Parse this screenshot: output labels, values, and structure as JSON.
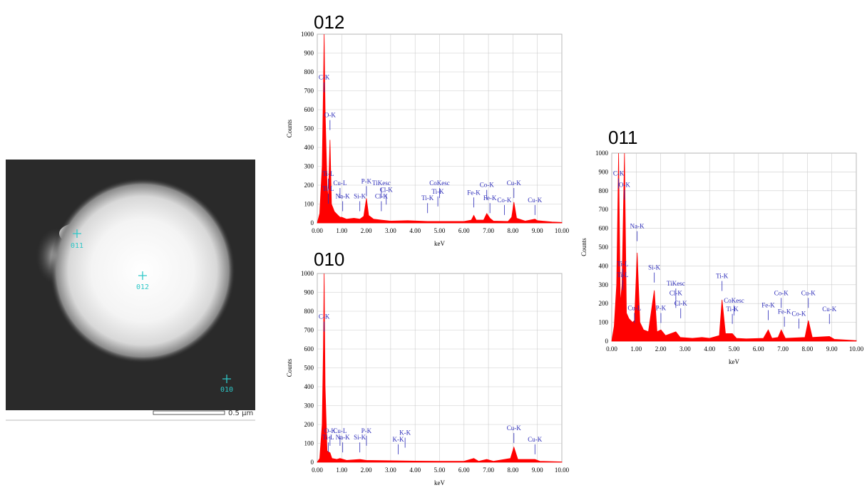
{
  "image": {
    "markers": [
      {
        "label": "011"
      },
      {
        "label": "012"
      },
      {
        "label": "010"
      }
    ],
    "scale_bar": "0.5 µm"
  },
  "chart_data": [
    {
      "type": "area",
      "title": "012",
      "x_label": "keV",
      "y_label": "Counts",
      "color": "#ff0000",
      "grid": true,
      "xlim": [
        0,
        10
      ],
      "ylim": [
        0,
        1000
      ],
      "xticks": [
        {
          "value": 0,
          "label": "0.00"
        },
        {
          "value": 1,
          "label": "1.00"
        },
        {
          "value": 2,
          "label": "2.00"
        },
        {
          "value": 3,
          "label": "3.00"
        },
        {
          "value": 4,
          "label": "4.00"
        },
        {
          "value": 5,
          "label": "5.00"
        },
        {
          "value": 6,
          "label": "6.00"
        },
        {
          "value": 7,
          "label": "7.00"
        },
        {
          "value": 8,
          "label": "8.00"
        },
        {
          "value": 9,
          "label": "9.00"
        },
        {
          "value": 10,
          "label": "10.00"
        }
      ],
      "yticks": [
        0,
        100,
        200,
        300,
        400,
        500,
        600,
        700,
        800,
        900,
        1000
      ],
      "x": [
        0,
        0.1,
        0.2,
        0.25,
        0.28,
        0.32,
        0.4,
        0.45,
        0.52,
        0.58,
        0.7,
        0.85,
        0.93,
        1.0,
        1.2,
        1.5,
        1.74,
        1.9,
        2.01,
        2.1,
        2.3,
        2.62,
        3.0,
        3.7,
        4.5,
        5.0,
        6.0,
        6.3,
        6.4,
        6.5,
        6.8,
        6.93,
        7.06,
        7.2,
        7.8,
        7.95,
        8.04,
        8.15,
        8.5,
        8.9,
        9.0,
        9.6,
        10.0
      ],
      "values": [
        0,
        50,
        300,
        700,
        1000,
        600,
        200,
        120,
        440,
        100,
        60,
        40,
        30,
        30,
        20,
        25,
        20,
        35,
        130,
        40,
        20,
        15,
        10,
        12,
        8,
        8,
        8,
        15,
        40,
        15,
        15,
        50,
        25,
        10,
        8,
        30,
        110,
        25,
        10,
        20,
        12,
        5,
        3
      ],
      "peak_labels": [
        {
          "label": "C-K",
          "x": 0.28,
          "y": 760
        },
        {
          "label": "O-K",
          "x": 0.52,
          "y": 560
        },
        {
          "label": "Ti-L",
          "x": 0.45,
          "y": 250
        },
        {
          "label": "Ti-L",
          "x": 0.45,
          "y": 170
        },
        {
          "label": "Cu-L",
          "x": 0.93,
          "y": 200
        },
        {
          "label": "Na-K",
          "x": 1.04,
          "y": 130
        },
        {
          "label": "Si-K",
          "x": 1.74,
          "y": 130
        },
        {
          "label": "P-K",
          "x": 2.01,
          "y": 210
        },
        {
          "label": "TiKesc",
          "x": 2.62,
          "y": 200
        },
        {
          "label": "Cl-K",
          "x": 2.82,
          "y": 165
        },
        {
          "label": "Cl-K",
          "x": 2.62,
          "y": 130
        },
        {
          "label": "Ti-K",
          "x": 4.51,
          "y": 120
        },
        {
          "label": "CoKesc",
          "x": 5.0,
          "y": 200
        },
        {
          "label": "Ti-K",
          "x": 4.93,
          "y": 155
        },
        {
          "label": "Fe-K",
          "x": 6.4,
          "y": 150
        },
        {
          "label": "Co-K",
          "x": 6.93,
          "y": 190
        },
        {
          "label": "Fe-K",
          "x": 7.06,
          "y": 120
        },
        {
          "label": "Co-K",
          "x": 7.65,
          "y": 110
        },
        {
          "label": "Cu-K",
          "x": 8.04,
          "y": 200
        },
        {
          "label": "Cu-K",
          "x": 8.9,
          "y": 110
        }
      ]
    },
    {
      "type": "area",
      "title": "010",
      "x_label": "keV",
      "y_label": "Counts",
      "color": "#ff0000",
      "grid": true,
      "xlim": [
        0,
        10
      ],
      "ylim": [
        0,
        1000
      ],
      "xticks": [
        {
          "value": 0,
          "label": "0.00"
        },
        {
          "value": 1,
          "label": "1.00"
        },
        {
          "value": 2,
          "label": "2.00"
        },
        {
          "value": 3,
          "label": "3.00"
        },
        {
          "value": 4,
          "label": "4.00"
        },
        {
          "value": 5,
          "label": "5.00"
        },
        {
          "value": 6,
          "label": "6.00"
        },
        {
          "value": 7,
          "label": "7.00"
        },
        {
          "value": 8,
          "label": "8.00"
        },
        {
          "value": 9,
          "label": "9.00"
        },
        {
          "value": 10,
          "label": "10.00"
        }
      ],
      "yticks": [
        0,
        100,
        200,
        300,
        400,
        500,
        600,
        700,
        800,
        900,
        1000
      ],
      "x": [
        0,
        0.1,
        0.2,
        0.25,
        0.28,
        0.32,
        0.4,
        0.52,
        0.6,
        0.8,
        0.93,
        1.2,
        1.74,
        2.0,
        3.0,
        4.0,
        5.0,
        6.0,
        6.4,
        6.6,
        6.93,
        7.2,
        7.9,
        8.04,
        8.2,
        8.9,
        9.1,
        10
      ],
      "values": [
        0,
        20,
        200,
        600,
        1000,
        400,
        60,
        50,
        20,
        15,
        20,
        10,
        15,
        10,
        8,
        6,
        5,
        5,
        20,
        5,
        15,
        5,
        20,
        80,
        15,
        15,
        5,
        2
      ],
      "peak_labels": [
        {
          "label": "C-K",
          "x": 0.28,
          "y": 760
        },
        {
          "label": "O-K",
          "x": 0.52,
          "y": 155
        },
        {
          "label": "Ti-L",
          "x": 0.45,
          "y": 120
        },
        {
          "label": "Cu-L",
          "x": 0.93,
          "y": 155
        },
        {
          "label": "Na-K",
          "x": 1.04,
          "y": 120
        },
        {
          "label": "Si-K",
          "x": 1.74,
          "y": 120
        },
        {
          "label": "P-K",
          "x": 2.01,
          "y": 155
        },
        {
          "label": "K-K",
          "x": 3.31,
          "y": 110
        },
        {
          "label": "K-K",
          "x": 3.59,
          "y": 145
        },
        {
          "label": "Cu-K",
          "x": 8.04,
          "y": 170
        },
        {
          "label": "Cu-K",
          "x": 8.9,
          "y": 110
        }
      ]
    },
    {
      "type": "area",
      "title": "011",
      "x_label": "keV",
      "y_label": "Counts",
      "color": "#ff0000",
      "grid": true,
      "xlim": [
        0,
        10
      ],
      "ylim": [
        0,
        1000
      ],
      "xticks": [
        {
          "value": 0,
          "label": "0.00"
        },
        {
          "value": 1,
          "label": "1.00"
        },
        {
          "value": 2,
          "label": "2.00"
        },
        {
          "value": 3,
          "label": "3.00"
        },
        {
          "value": 4,
          "label": "4.00"
        },
        {
          "value": 5,
          "label": "5.00"
        },
        {
          "value": 6,
          "label": "6.00"
        },
        {
          "value": 7,
          "label": "7.00"
        },
        {
          "value": 8,
          "label": "8.00"
        },
        {
          "value": 9,
          "label": "9.00"
        },
        {
          "value": 10,
          "label": "10.00"
        }
      ],
      "yticks": [
        0,
        100,
        200,
        300,
        400,
        500,
        600,
        700,
        800,
        900,
        1000
      ],
      "x": [
        0,
        0.1,
        0.2,
        0.28,
        0.35,
        0.42,
        0.52,
        0.6,
        0.7,
        0.85,
        0.93,
        1.04,
        1.15,
        1.3,
        1.5,
        1.74,
        1.85,
        2.01,
        2.2,
        2.62,
        2.8,
        3.3,
        3.69,
        4.0,
        4.4,
        4.51,
        4.65,
        4.93,
        5.1,
        5.5,
        6.2,
        6.4,
        6.55,
        6.8,
        6.93,
        7.1,
        7.9,
        8.04,
        8.2,
        8.9,
        9.1,
        10
      ],
      "values": [
        0,
        80,
        300,
        1000,
        200,
        300,
        1000,
        150,
        120,
        100,
        110,
        470,
        100,
        60,
        50,
        270,
        50,
        60,
        30,
        50,
        20,
        15,
        20,
        15,
        30,
        220,
        40,
        40,
        15,
        12,
        15,
        60,
        15,
        20,
        60,
        15,
        20,
        110,
        20,
        25,
        10,
        3
      ],
      "peak_labels": [
        {
          "label": "C-K",
          "x": 0.28,
          "y": 880
        },
        {
          "label": "O-K",
          "x": 0.52,
          "y": 820
        },
        {
          "label": "Ti-L",
          "x": 0.45,
          "y": 400
        },
        {
          "label": "Ti-L",
          "x": 0.45,
          "y": 340
        },
        {
          "label": "Cu-L",
          "x": 0.93,
          "y": 165
        },
        {
          "label": "Na-K",
          "x": 1.04,
          "y": 600
        },
        {
          "label": "Si-K",
          "x": 1.74,
          "y": 380
        },
        {
          "label": "P-K",
          "x": 2.01,
          "y": 165
        },
        {
          "label": "TiKesc",
          "x": 2.62,
          "y": 295
        },
        {
          "label": "Cl-K",
          "x": 2.62,
          "y": 245
        },
        {
          "label": "Cl-K",
          "x": 2.82,
          "y": 190
        },
        {
          "label": "Ti-K",
          "x": 4.51,
          "y": 335
        },
        {
          "label": "CoKesc",
          "x": 5.0,
          "y": 205
        },
        {
          "label": "Ti-K",
          "x": 4.93,
          "y": 160
        },
        {
          "label": "Fe-K",
          "x": 6.4,
          "y": 180
        },
        {
          "label": "Co-K",
          "x": 6.93,
          "y": 245
        },
        {
          "label": "Fe-K",
          "x": 7.06,
          "y": 145
        },
        {
          "label": "Co-K",
          "x": 7.65,
          "y": 135
        },
        {
          "label": "Cu-K",
          "x": 8.04,
          "y": 245
        },
        {
          "label": "Cu-K",
          "x": 8.9,
          "y": 160
        }
      ]
    }
  ]
}
